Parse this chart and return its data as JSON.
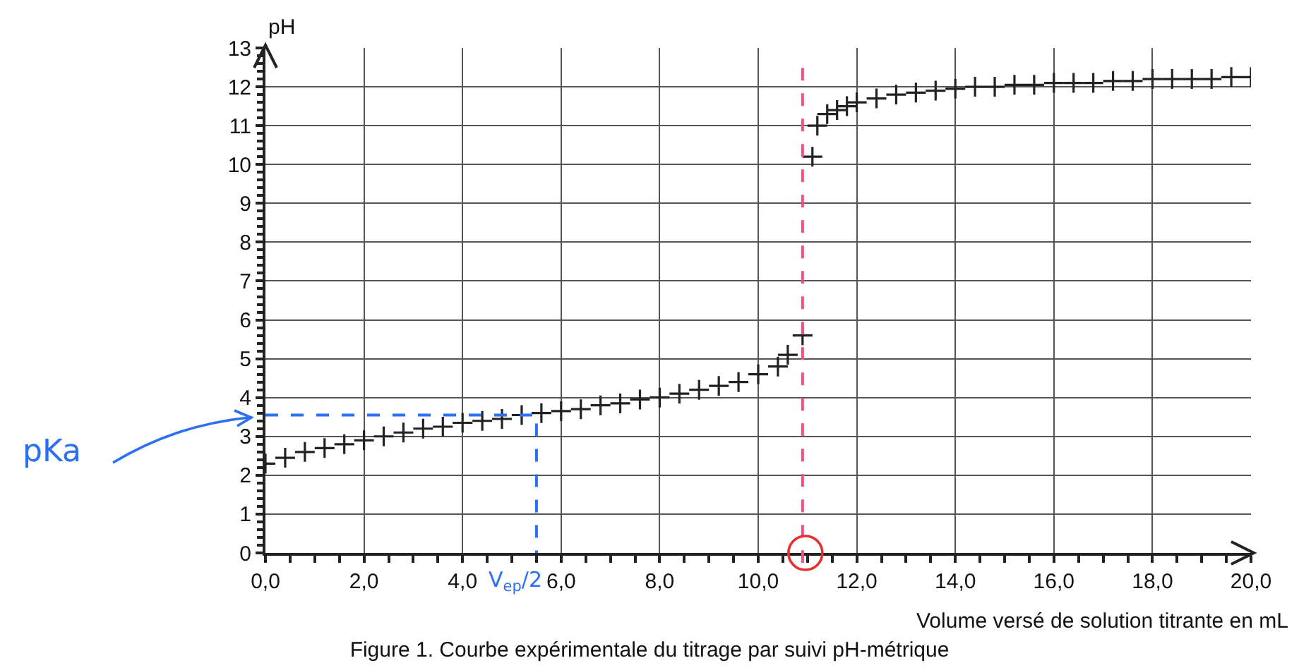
{
  "chart_data": {
    "type": "scatter",
    "title": "Figure 1. Courbe expérimentale du titrage par suivi pH-métrique",
    "xlabel": "Volume versé de solution titrante en mL",
    "ylabel": "pH",
    "series": [
      {
        "color": "#222222",
        "marker": "cross",
        "x": [
          0,
          0.4,
          0.8,
          1.2,
          1.6,
          2.0,
          2.4,
          2.8,
          3.2,
          3.6,
          4.0,
          4.4,
          4.8,
          5.2,
          5.6,
          6.0,
          6.4,
          6.8,
          7.2,
          7.6,
          8.0,
          8.4,
          8.8,
          9.2,
          9.6,
          10.0,
          10.4,
          10.6,
          10.9,
          11.1,
          11.2,
          11.4,
          11.6,
          11.8,
          12.0,
          12.4,
          12.8,
          13.2,
          13.6,
          14.0,
          14.4,
          14.8,
          15.2,
          15.6,
          16.0,
          16.4,
          16.8,
          17.2,
          17.6,
          18.0,
          18.4,
          18.8,
          19.2,
          19.6,
          20.0
        ],
        "values": [
          2.3,
          2.45,
          2.6,
          2.7,
          2.8,
          2.9,
          3.0,
          3.1,
          3.2,
          3.25,
          3.35,
          3.4,
          3.45,
          3.55,
          3.6,
          3.65,
          3.7,
          3.8,
          3.85,
          3.95,
          4.0,
          4.1,
          4.2,
          4.3,
          4.4,
          4.6,
          4.8,
          5.1,
          5.6,
          10.2,
          11.0,
          11.3,
          11.4,
          11.5,
          11.6,
          11.7,
          11.8,
          11.85,
          11.9,
          11.95,
          12.0,
          12.0,
          12.05,
          12.05,
          12.1,
          12.1,
          12.1,
          12.15,
          12.15,
          12.2,
          12.2,
          12.2,
          12.2,
          12.25,
          12.25
        ]
      },
      {
        "type": "line",
        "color": "#2b6ff5",
        "line_style": "dashed",
        "marker": "none",
        "x": [
          0,
          5.5,
          5.5
        ],
        "values": [
          3.55,
          3.55,
          0
        ]
      }
    ],
    "xlim": [
      0,
      20
    ],
    "ylim": [
      0,
      13
    ],
    "xticks": [
      {
        "value": 0,
        "label": "0,0"
      },
      {
        "value": 2,
        "label": "2,0"
      },
      {
        "value": 4,
        "label": "4,0"
      },
      {
        "value": 6,
        "label": "6,0"
      },
      {
        "value": 8,
        "label": "8,0"
      },
      {
        "value": 10,
        "label": "10,0"
      },
      {
        "value": 12,
        "label": "12,0"
      },
      {
        "value": 14,
        "label": "14,0"
      },
      {
        "value": 16,
        "label": "16,0"
      },
      {
        "value": 18,
        "label": "18,0"
      },
      {
        "value": 20,
        "label": "20,0"
      }
    ],
    "yticks": [
      0,
      1,
      2,
      3,
      4,
      5,
      6,
      7,
      8,
      9,
      10,
      11,
      12,
      13
    ],
    "grid": true,
    "legend": false,
    "ref_lines": [
      {
        "axis": "x",
        "value": 10.9,
        "color": "#ee4f86",
        "line_style": "dashed"
      }
    ],
    "annotations": [
      "pKa",
      {
        "text": "V$_{ep}$/2",
        "x": 5.5,
        "y": 0
      }
    ]
  }
}
